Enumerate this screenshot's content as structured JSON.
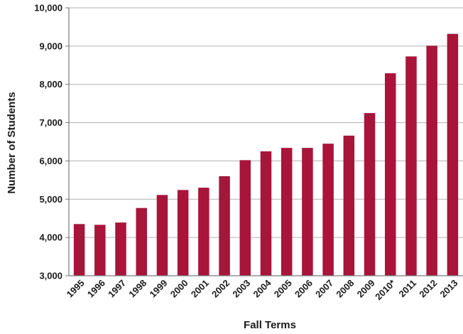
{
  "chart_data": {
    "type": "bar",
    "title": "",
    "xlabel": "Fall Terms",
    "ylabel": "Number of Students",
    "categories": [
      "1995",
      "1996",
      "1997",
      "1998",
      "1999",
      "2000",
      "2001",
      "2002",
      "2003",
      "2004",
      "2005",
      "2006",
      "2007",
      "2008",
      "2009",
      "2010*",
      "2011",
      "2012",
      "2013"
    ],
    "values": [
      4350,
      4330,
      4390,
      4770,
      5110,
      5240,
      5300,
      5600,
      6020,
      6250,
      6340,
      6340,
      6450,
      6660,
      7250,
      8290,
      8730,
      9010,
      9320
    ],
    "ylim": [
      3000,
      10000
    ],
    "yticks": [
      3000,
      4000,
      5000,
      6000,
      7000,
      8000,
      9000,
      10000
    ],
    "ytick_labels": [
      "3,000",
      "4,000",
      "5,000",
      "6,000",
      "7,000",
      "8,000",
      "9,000",
      "10,000"
    ],
    "grid": "horizontal",
    "legend": "none",
    "colors": {
      "bar": "#a8143a",
      "grid": "#b0b0b0",
      "axis": "#7a7a7a",
      "text": "#1a1a1a"
    }
  }
}
